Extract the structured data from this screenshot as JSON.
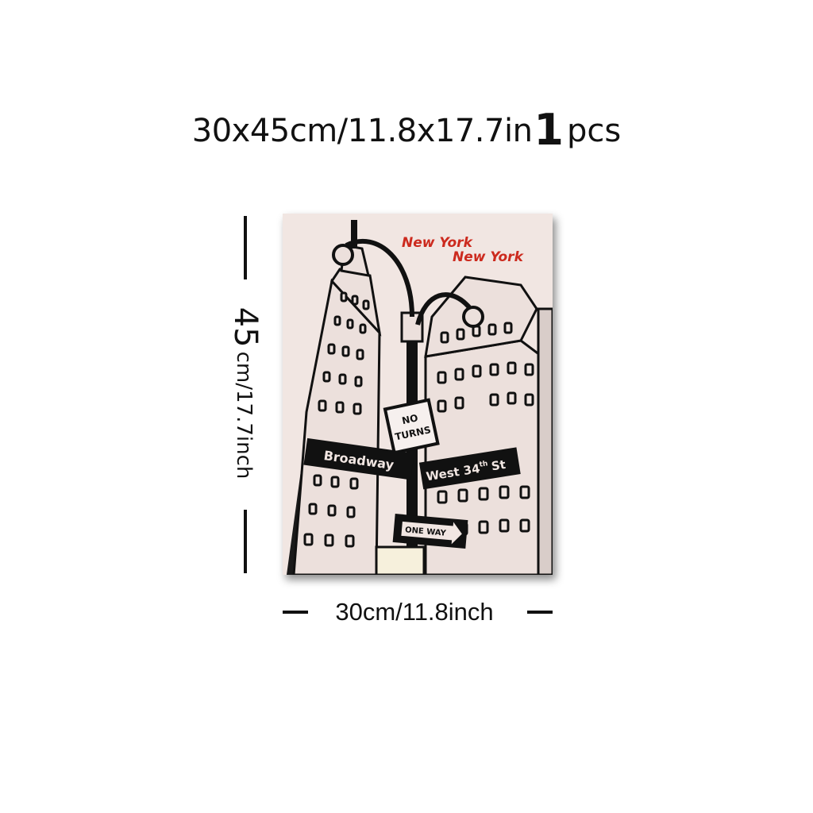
{
  "headline": {
    "size": "30x45cm/11.8x17.7in",
    "qty_number": "1",
    "qty_unit": "pcs"
  },
  "dimensions": {
    "height_number": "45",
    "height_text": "cm/17.7inch",
    "width_label": "30cm/11.8inch"
  },
  "artwork": {
    "title_line1": "New York",
    "title_line2": "New York",
    "street_sign_left": "Broadway",
    "street_sign_right_main": "West 34",
    "street_sign_right_sup": "th",
    "street_sign_right_end": "St",
    "no_turns_line1": "NO",
    "no_turns_line2": "TURNS",
    "one_way": "ONE WAY"
  },
  "colors": {
    "background": "#ffffff",
    "ink": "#111111",
    "poster_bg": "#f1e6e2",
    "accent_red": "#cc2a1e"
  }
}
